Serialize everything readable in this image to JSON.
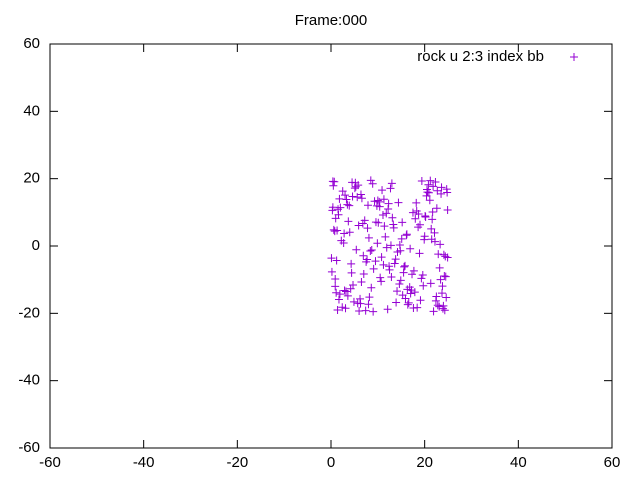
{
  "chart_data": {
    "type": "scatter",
    "title": "Frame:000",
    "series": [
      {
        "name": "rock u 2:3 index bb",
        "color": "#9400d3",
        "x": [
          0.4,
          3.1,
          7.8,
          12.5,
          18.2,
          22.9,
          1.7,
          5.3,
          9.9,
          14.6,
          20.1,
          24.3,
          2.8,
          6.6,
          11.2,
          16.4,
          21.7,
          0.9,
          4.5,
          8.7,
          13.3,
          17.9,
          23.5,
          1.2,
          6.0,
          10.4,
          15.1,
          19.6,
          24.7,
          3.6,
          7.2,
          11.9,
          16.8,
          21.2,
          0.6,
          4.9,
          9.3,
          13.8,
          18.7,
          23.1,
          2.2,
          5.8,
          10.7,
          15.6,
          20.4,
          24.0,
          1.5,
          6.9,
          11.4,
          17.2,
          22.3,
          0.2,
          3.9,
          8.2,
          12.8,
          18.0,
          23.8,
          2.5,
          7.5,
          12.1,
          16.1,
          20.9,
          24.5,
          1.9,
          5.1,
          9.6,
          14.2,
          19.1,
          22.6,
          0.8,
          4.2,
          8.9,
          13.6,
          17.5,
          21.9,
          3.3,
          7.0,
          11.6,
          15.9,
          20.6,
          24.9,
          2.0,
          6.3,
          10.1,
          14.9,
          19.4,
          23.3,
          1.1,
          5.6,
          9.1,
          13.1,
          18.4,
          22.1,
          0.5,
          4.7,
          8.4,
          12.3,
          16.6,
          21.4,
          24.2,
          3.0,
          7.7,
          11.1,
          15.3,
          19.9,
          23.6,
          1.4,
          5.9,
          10.5,
          14.4,
          18.9,
          22.8,
          0.3,
          4.0,
          8.6,
          13.0,
          17.7,
          21.1,
          24.6,
          2.7,
          6.5,
          10.9,
          15.8,
          20.2,
          23.9,
          1.8,
          5.4,
          9.8,
          14.1,
          18.6,
          22.4,
          0.7,
          4.4,
          8.1,
          12.7,
          17.0,
          21.6,
          24.4,
          3.5,
          7.4,
          11.8,
          16.3,
          20.8,
          23.2,
          1.3,
          6.2,
          10.3,
          14.7,
          19.3,
          22.7,
          0.1,
          3.7,
          8.0,
          12.2,
          16.9,
          21.3,
          24.8,
          2.4,
          6.8,
          11.3,
          15.5,
          20.0,
          23.7,
          1.6,
          5.2,
          9.5,
          13.9,
          18.3,
          22.2,
          0.9,
          4.6,
          9.0,
          13.4,
          17.3,
          21.8,
          24.1,
          3.2,
          7.9,
          12.4,
          16.2,
          20.5,
          23.4,
          1.0,
          5.7,
          10.0,
          14.8,
          19.0,
          22.5,
          0.4,
          4.3,
          8.5,
          12.9,
          17.6,
          21.5,
          24.9,
          2.9,
          6.4,
          10.8,
          15.2,
          19.7
        ],
        "values": [
          19.2,
          -18.5,
          5.3,
          -7.1,
          12.8,
          -2.4,
          -15.9,
          17.6,
          0.8,
          -11.3,
          8.9,
          -19.1,
          3.7,
          14.2,
          -5.6,
          -17.4,
          10.1,
          -9.8,
          18.9,
          -1.2,
          6.4,
          -13.7,
          15.5,
          -4.3,
          -19.3,
          11.7,
          2.1,
          -8.6,
          16.9,
          -14.8,
          7.6,
          -0.5,
          -12.2,
          19.4,
          4.8,
          -16.6,
          13.3,
          -3.9,
          9.5,
          -18.0,
          1.6,
          18.1,
          -10.5,
          -6.2,
          14.9,
          -17.8,
          10.9,
          -2.9,
          5.9,
          -13.1,
          19.0,
          -7.7,
          12.0,
          -15.2,
          0.2,
          8.1,
          -11.9,
          16.3,
          -4.7,
          -18.8,
          3.2,
          15.8,
          -9.1,
          -14.3,
          17.2,
          7.1,
          -1.8,
          -16.1,
          11.2,
          4.4,
          -12.7,
          18.5,
          -5.2,
          9.9,
          -19.4,
          13.8,
          -8.3,
          2.7,
          -15.6,
          16.0,
          -3.4,
          11.4,
          -17.1,
          6.9,
          -10.2,
          19.3,
          0.5,
          -13.9,
          14.5,
          -6.8,
          8.4,
          -18.3,
          3.9,
          17.9,
          -11.6,
          -1.5,
          12.6,
          -16.9,
          5.1,
          -8.9,
          15.1,
          -4.0,
          9.2,
          -14.6,
          1.9,
          17.4,
          -19.0,
          6.1,
          -9.4,
          12.9,
          -2.2,
          -17.6,
          10.6,
          4.1,
          -12.4,
          18.6,
          -7.4,
          13.6,
          -15.3,
          0.9,
          -10.7,
          16.6,
          -5.9,
          8.6,
          -18.6,
          14.0,
          -1.1,
          11.9,
          -13.4,
          5.6,
          -16.3,
          19.1,
          -8.0,
          2.4,
          17.1,
          -14.1,
          7.9,
          -3.1,
          12.3,
          -19.2,
          9.7,
          -12.9,
          18.2,
          -6.5,
          4.6,
          -15.7,
          13.1,
          0.3,
          -9.6,
          16.4,
          -3.6,
          7.3,
          -17.3,
          11.0,
          -0.8,
          -11.1,
          15.9,
          -18.2,
          6.7,
          13.9,
          -7.9,
          2.9,
          -14.0,
          9.3,
          18.8,
          -4.5,
          -16.8,
          10.4,
          1.3,
          -12.0,
          14.7,
          -19.5,
          5.4,
          -8.4,
          17.7,
          -2.6,
          -13.5,
          12.1,
          -6.0,
          3.5,
          16.8,
          -10.0,
          8.2,
          -17.0,
          13.5,
          -1.4,
          6.3,
          -15.0,
          11.5,
          -5.3,
          19.5,
          -9.2,
          -18.4,
          2.0,
          10.7,
          -13.2,
          15.3,
          -3.3,
          7.0,
          -11.8
        ]
      }
    ],
    "xlim": [
      -60,
      60
    ],
    "xticks": [
      -60,
      -40,
      -20,
      0,
      20,
      40,
      60
    ],
    "ylim": [
      -60,
      60
    ],
    "yticks": [
      -60,
      -40,
      -20,
      0,
      20,
      40,
      60
    ],
    "legend": "top right"
  }
}
